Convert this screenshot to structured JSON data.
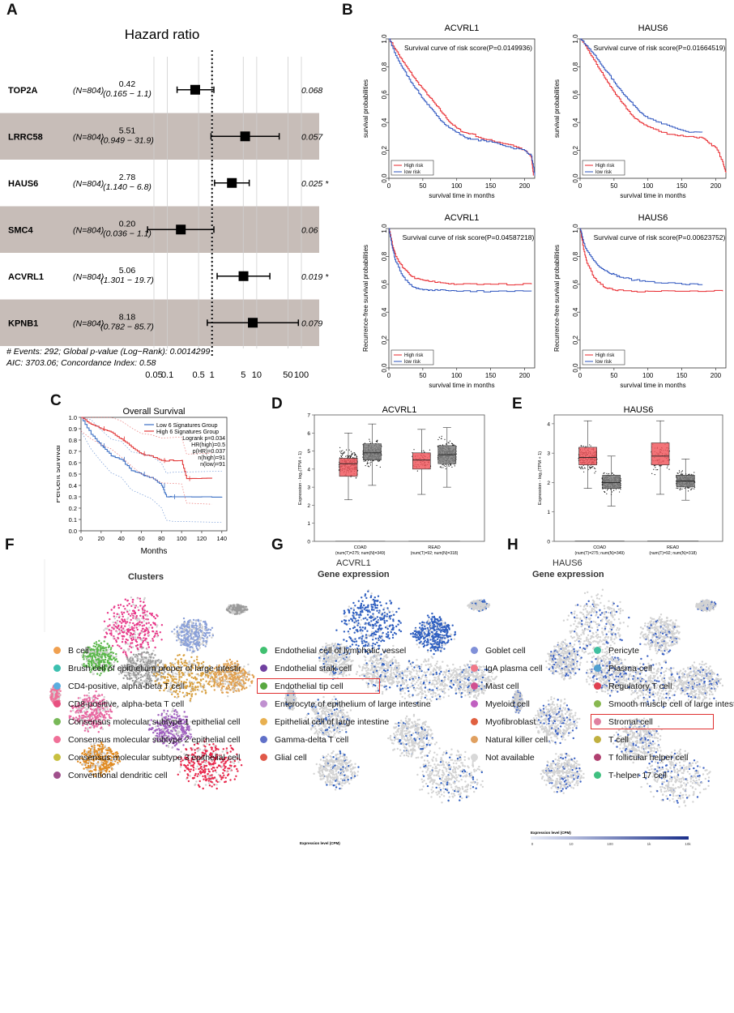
{
  "panel_labels": {
    "a": "A",
    "b": "B",
    "c": "C",
    "d": "D",
    "e": "E",
    "f": "F",
    "g": "G",
    "h": "H"
  },
  "hazard": {
    "title": "Hazard ratio",
    "rows": [
      {
        "gene": "TOP2A",
        "n": "(N=804)",
        "hr": "0.42",
        "ci": "(0.165 − 1.1)",
        "p": "0.068",
        "hr_val": 0.42,
        "lo": 0.165,
        "hi": 1.1,
        "shaded": false
      },
      {
        "gene": "LRRC58",
        "n": "(N=804)",
        "hr": "5.51",
        "ci": "(0.949 − 31.9)",
        "p": "0.057",
        "hr_val": 5.51,
        "lo": 0.949,
        "hi": 31.9,
        "shaded": true
      },
      {
        "gene": "HAUS6",
        "n": "(N=804)",
        "hr": "2.78",
        "ci": "(1.140 − 6.8)",
        "p": "0.025 *",
        "hr_val": 2.78,
        "lo": 1.14,
        "hi": 6.8,
        "shaded": false
      },
      {
        "gene": "SMC4",
        "n": "(N=804)",
        "hr": "0.20",
        "ci": "(0.036 − 1.1)",
        "p": "0.06",
        "hr_val": 0.2,
        "lo": 0.036,
        "hi": 1.1,
        "shaded": true
      },
      {
        "gene": "ACVRL1",
        "n": "(N=804)",
        "hr": "5.06",
        "ci": "(1.301 − 19.7)",
        "p": "0.019 *",
        "hr_val": 5.06,
        "lo": 1.301,
        "hi": 19.7,
        "shaded": false
      },
      {
        "gene": "KPNB1",
        "n": "(N=804)",
        "hr": "8.18",
        "ci": "(0.782 − 85.7)",
        "p": "0.079",
        "hr_val": 8.18,
        "lo": 0.782,
        "hi": 85.7,
        "shaded": true
      }
    ],
    "footer1": "# Events: 292; Global p-value (Log−Rank): 0.0014299",
    "footer2": "AIC: 3703.06; Concordance Index: 0.58",
    "ticks": [
      "0.05",
      "0.1",
      "0.5",
      "1",
      "5",
      "10",
      "50",
      "100"
    ],
    "tick_vals": [
      0.05,
      0.1,
      0.5,
      1,
      5,
      10,
      50,
      100
    ]
  },
  "chart_data": [
    {
      "type": "line",
      "panel": "B1",
      "title": "ACVRL1",
      "annotation": "Survival curve of risk score(P=0.0149936)",
      "xlabel": "survival time in months",
      "ylabel": "survival probabilities",
      "xlim": [
        0,
        215
      ],
      "ylim": [
        0,
        1
      ],
      "xticks": [
        "0",
        "50",
        "100",
        "150",
        "200"
      ],
      "yticks": [
        "0.0",
        "0.2",
        "0.4",
        "0.6",
        "0.8",
        "1.0"
      ],
      "legend": [
        "High risk",
        "low risk"
      ],
      "series": [
        {
          "name": "High risk",
          "color": "#e8262b",
          "x": [
            0,
            10,
            20,
            30,
            40,
            50,
            60,
            70,
            80,
            90,
            100,
            110,
            120,
            140,
            160,
            180,
            200,
            210,
            213
          ],
          "y": [
            1,
            0.92,
            0.84,
            0.77,
            0.7,
            0.64,
            0.58,
            0.52,
            0.46,
            0.4,
            0.36,
            0.33,
            0.32,
            0.28,
            0.26,
            0.24,
            0.2,
            0.15,
            0.02
          ]
        },
        {
          "name": "low risk",
          "color": "#2a52be",
          "x": [
            0,
            10,
            20,
            30,
            40,
            50,
            60,
            70,
            80,
            90,
            100,
            110,
            120,
            140,
            160,
            180,
            200,
            210,
            215
          ],
          "y": [
            1,
            0.88,
            0.79,
            0.71,
            0.64,
            0.57,
            0.51,
            0.45,
            0.4,
            0.36,
            0.33,
            0.3,
            0.28,
            0.27,
            0.25,
            0.22,
            0.2,
            0.16,
            0.02
          ]
        }
      ]
    },
    {
      "type": "line",
      "panel": "B2",
      "title": "HAUS6",
      "annotation": "Survival curve of risk score(P=0.01664519)",
      "xlabel": "survival time in months",
      "ylabel": "survival probabilities",
      "xlim": [
        0,
        215
      ],
      "ylim": [
        0,
        1
      ],
      "xticks": [
        "0",
        "50",
        "100",
        "150",
        "200"
      ],
      "yticks": [
        "0.0",
        "0.2",
        "0.4",
        "0.6",
        "0.8",
        "1.0"
      ],
      "legend": [
        "High risk",
        "low risk"
      ],
      "series": [
        {
          "name": "High risk",
          "color": "#e8262b",
          "x": [
            0,
            10,
            20,
            30,
            40,
            50,
            60,
            70,
            80,
            90,
            100,
            120,
            140,
            160,
            180,
            190,
            200,
            210,
            215
          ],
          "y": [
            1,
            0.93,
            0.85,
            0.77,
            0.69,
            0.62,
            0.55,
            0.49,
            0.43,
            0.4,
            0.37,
            0.33,
            0.31,
            0.3,
            0.29,
            0.25,
            0.22,
            0.12,
            0.04
          ]
        },
        {
          "name": "low risk",
          "color": "#2a52be",
          "x": [
            0,
            10,
            20,
            30,
            40,
            50,
            60,
            70,
            80,
            90,
            100,
            120,
            140,
            160,
            180
          ],
          "y": [
            1,
            0.95,
            0.89,
            0.82,
            0.76,
            0.69,
            0.63,
            0.57,
            0.52,
            0.47,
            0.43,
            0.39,
            0.36,
            0.33,
            0.33
          ]
        }
      ]
    },
    {
      "type": "line",
      "panel": "B3",
      "title": "ACVRL1",
      "annotation": "Survival curve of risk score(P=0.04587218)",
      "xlabel": "survival time in months",
      "ylabel": "Recurrence-free survival probabilities",
      "xlim": [
        0,
        215
      ],
      "ylim": [
        0,
        1
      ],
      "xticks": [
        "0",
        "50",
        "100",
        "150",
        "200"
      ],
      "yticks": [
        "0.0",
        "0.2",
        "0.4",
        "0.6",
        "0.8",
        "1.0"
      ],
      "legend": [
        "High risk",
        "low risk"
      ],
      "series": [
        {
          "name": "High risk",
          "color": "#e8262b",
          "x": [
            0,
            5,
            10,
            20,
            30,
            40,
            50,
            60,
            80,
            100,
            150,
            210
          ],
          "y": [
            1,
            0.88,
            0.8,
            0.72,
            0.67,
            0.64,
            0.63,
            0.62,
            0.61,
            0.6,
            0.6,
            0.6
          ]
        },
        {
          "name": "low risk",
          "color": "#2a52be",
          "x": [
            0,
            5,
            10,
            20,
            30,
            40,
            50,
            60,
            80,
            100,
            150,
            210
          ],
          "y": [
            1,
            0.86,
            0.76,
            0.66,
            0.6,
            0.57,
            0.56,
            0.56,
            0.56,
            0.55,
            0.55,
            0.55
          ]
        }
      ]
    },
    {
      "type": "line",
      "panel": "B4",
      "title": "HAUS6",
      "annotation": "Survival curve of risk score(P=0.00623752)",
      "xlabel": "survival time in months",
      "ylabel": "Recurrence-free survival probabilities",
      "xlim": [
        0,
        215
      ],
      "ylim": [
        0,
        1
      ],
      "xticks": [
        "0",
        "50",
        "100",
        "150",
        "200"
      ],
      "yticks": [
        "0.0",
        "0.2",
        "0.4",
        "0.6",
        "0.8",
        "1.0"
      ],
      "legend": [
        "High risk",
        "low risk"
      ],
      "series": [
        {
          "name": "High risk",
          "color": "#e8262b",
          "x": [
            0,
            5,
            10,
            20,
            30,
            40,
            50,
            60,
            80,
            100,
            150,
            210
          ],
          "y": [
            1,
            0.85,
            0.75,
            0.65,
            0.6,
            0.57,
            0.56,
            0.56,
            0.55,
            0.55,
            0.55,
            0.55
          ]
        },
        {
          "name": "low risk",
          "color": "#2a52be",
          "x": [
            0,
            5,
            10,
            20,
            30,
            40,
            50,
            60,
            80,
            100,
            150,
            180
          ],
          "y": [
            1,
            0.9,
            0.84,
            0.77,
            0.72,
            0.69,
            0.67,
            0.65,
            0.63,
            0.62,
            0.6,
            0.6
          ]
        }
      ]
    },
    {
      "type": "line",
      "panel": "C",
      "title": "Overall Survival",
      "xlabel": "Months",
      "ylabel": "Percent survival",
      "xlim": [
        0,
        145
      ],
      "ylim": [
        0,
        1
      ],
      "xticks": [
        "0",
        "20",
        "40",
        "60",
        "80",
        "100",
        "120",
        "140"
      ],
      "yticks": [
        "0.0",
        "0.1",
        "0.2",
        "0.3",
        "0.4",
        "0.5",
        "0.6",
        "0.7",
        "0.8",
        "0.9",
        "1.0"
      ],
      "legend": [
        "Low 6 Signatures Group",
        "High 6 Signatures Group"
      ],
      "stats": [
        "Logrank p=0.034",
        "HR(high)=0.5",
        "p(HR)=0.037",
        "n(high)=91",
        "n(low)=91"
      ],
      "series": [
        {
          "name": "Low 6 Signatures Group",
          "color": "#3b6fc4",
          "x": [
            0,
            10,
            20,
            30,
            40,
            50,
            60,
            70,
            80,
            85,
            90,
            140
          ],
          "y": [
            1,
            0.85,
            0.75,
            0.66,
            0.63,
            0.53,
            0.5,
            0.47,
            0.4,
            0.3,
            0.3,
            0.3
          ]
        },
        {
          "name": "High 6 Signatures Group",
          "color": "#e23a3a",
          "x": [
            0,
            10,
            20,
            30,
            40,
            50,
            60,
            70,
            80,
            100,
            105,
            130
          ],
          "y": [
            1,
            0.94,
            0.9,
            0.87,
            0.81,
            0.74,
            0.68,
            0.66,
            0.62,
            0.62,
            0.46,
            0.46
          ]
        }
      ]
    },
    {
      "type": "box",
      "panel": "D",
      "title": "ACVRL1",
      "ylabel": "Expression - log₂(TPM + 1)",
      "ylim": [
        0,
        7
      ],
      "yticks": [
        "0",
        "1",
        "2",
        "3",
        "4",
        "5",
        "6",
        "7"
      ],
      "groups": [
        {
          "label": "COAD",
          "sub": "(num(T)=275; num(N)=349)"
        },
        {
          "label": "READ",
          "sub": "(num(T)=92; num(N)=318)"
        }
      ],
      "boxes": [
        {
          "q1": 3.6,
          "med": 4.3,
          "q3": 4.6,
          "lo": 2.3,
          "hi": 6.0,
          "color": "#f15a60"
        },
        {
          "q1": 4.5,
          "med": 4.9,
          "q3": 5.4,
          "lo": 3.1,
          "hi": 6.5,
          "color": "#7f7f7f"
        },
        {
          "q1": 4.0,
          "med": 4.5,
          "q3": 4.9,
          "lo": 2.6,
          "hi": 6.2,
          "color": "#f15a60"
        },
        {
          "q1": 4.3,
          "med": 4.8,
          "q3": 5.3,
          "lo": 3.0,
          "hi": 6.3,
          "color": "#7f7f7f"
        }
      ]
    },
    {
      "type": "box",
      "panel": "E",
      "title": "HAUS6",
      "ylabel": "Expression - log₂(TPM + 1)",
      "ylim": [
        0,
        4.3
      ],
      "yticks": [
        "0",
        "1",
        "2",
        "3",
        "4"
      ],
      "groups": [
        {
          "label": "COAD",
          "sub": "(num(T)=275; num(N)=349)"
        },
        {
          "label": "READ",
          "sub": "(num(T)=92; num(N)=318)"
        }
      ],
      "boxes": [
        {
          "q1": 2.6,
          "med": 2.85,
          "q3": 3.2,
          "lo": 1.8,
          "hi": 4.1,
          "color": "#f15a60"
        },
        {
          "q1": 1.8,
          "med": 2.0,
          "q3": 2.25,
          "lo": 1.2,
          "hi": 2.9,
          "color": "#7f7f7f"
        },
        {
          "q1": 2.6,
          "med": 2.9,
          "q3": 3.35,
          "lo": 1.6,
          "hi": 4.1,
          "color": "#f15a60"
        },
        {
          "q1": 1.85,
          "med": 2.05,
          "q3": 2.25,
          "lo": 1.4,
          "hi": 2.8,
          "color": "#7f7f7f"
        }
      ]
    }
  ],
  "umap": {
    "f_title": "Clusters",
    "g_title": "ACVRL1",
    "g_sub": "Gene expression",
    "h_title": "HAUS6",
    "h_sub": "Gene expression",
    "g_bar_label": "Expression level (CPM)",
    "h_bar_label": "Expression level (CPM)",
    "h_bar_ticks": [
      "0",
      "10",
      "100",
      "1k",
      "10k"
    ]
  },
  "legend_columns": [
    [
      {
        "label": "B cell",
        "color": "#f0a050"
      },
      {
        "label": "Brush cell of epithelium proper of large intestir",
        "color": "#3cc0b0"
      },
      {
        "label": "CD4-positive, alpha-beta T cell",
        "color": "#5aaee0"
      },
      {
        "label": "CD8-positive, alpha-beta T cell",
        "color": "#e85080"
      },
      {
        "label": "Consensus molecular subtype 1 epithelial cell",
        "color": "#78b858"
      },
      {
        "label": "Consensus molecular subtype 2 epithelial cell",
        "color": "#f07098"
      },
      {
        "label": "Consensus molecular subtype 3 epithelial cell",
        "color": "#c8c040"
      },
      {
        "label": "Conventional dendritic cell",
        "color": "#a0508c"
      }
    ],
    [
      {
        "label": "Endothelial cell of lymphatic vessel",
        "color": "#40c070"
      },
      {
        "label": "Endothelial stalk cell",
        "color": "#7040a0"
      },
      {
        "label": "Endothelial tip cell",
        "color": "#58a840",
        "highlight": true
      },
      {
        "label": "Enterocyte of epithelium of large intestine",
        "color": "#c090d0"
      },
      {
        "label": "Epithelial cell of large intestine",
        "color": "#e8b050"
      },
      {
        "label": "Gamma-delta T cell",
        "color": "#6070c8"
      },
      {
        "label": "Glial cell",
        "color": "#e05848"
      }
    ],
    [
      {
        "label": "Goblet cell",
        "color": "#8090d8"
      },
      {
        "label": "IgA plasma cell",
        "color": "#f07888"
      },
      {
        "label": "Mast cell",
        "color": "#d05090"
      },
      {
        "label": "Myeloid cell",
        "color": "#c060c0"
      },
      {
        "label": "Myofibroblast",
        "color": "#e06040"
      },
      {
        "label": "Natural killer cell",
        "color": "#e0a060"
      },
      {
        "label": "Not available",
        "color": "#d8d8d8"
      }
    ],
    [
      {
        "label": "Pericyte",
        "color": "#40c0a0"
      },
      {
        "label": "Plasma cell",
        "color": "#50a0d0"
      },
      {
        "label": "Regulatory T cell",
        "color": "#e04050"
      },
      {
        "label": "Smooth muscle cell of large intestine",
        "color": "#88b850"
      },
      {
        "label": "Stromal cell",
        "color": "#e080a0",
        "highlight": true
      },
      {
        "label": "T cell",
        "color": "#c0b040"
      },
      {
        "label": "T follicular helper cell",
        "color": "#b04070"
      },
      {
        "label": "T-helper 17 cell",
        "color": "#40c080"
      }
    ]
  ]
}
